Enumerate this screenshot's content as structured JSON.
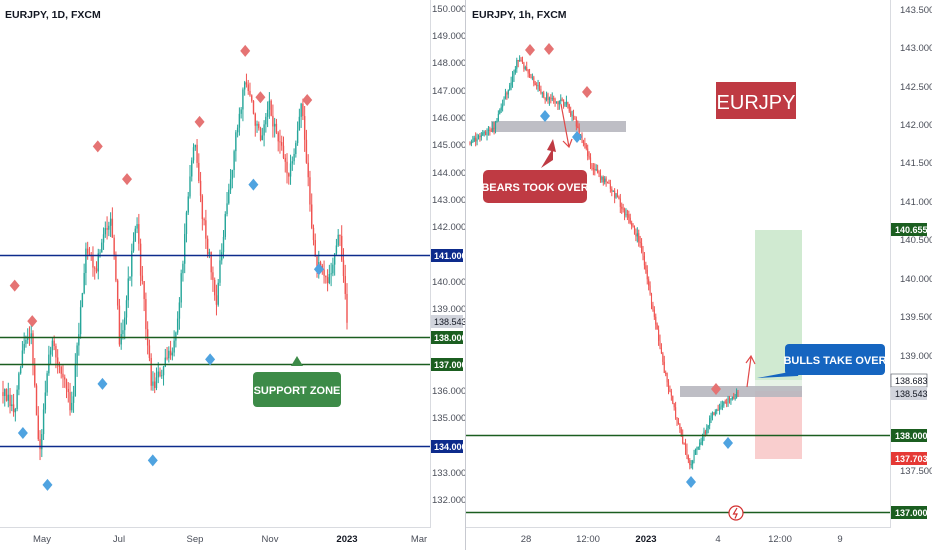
{
  "colors": {
    "up": "#26a69a",
    "down": "#ef5350",
    "navy": "#0d2b8c",
    "green_line": "#1b5e20",
    "supp_green": "#3d8b48",
    "bear_red": "#bf3a43",
    "bull_blue": "#1565c0",
    "diamond_red": "#e57373",
    "diamond_blue": "#4fa3e0",
    "grey_zone": "#b7b7bf",
    "tp_zone": "#c8e6c9",
    "sl_zone": "#f8c9c9"
  },
  "chart_data": [
    {
      "type": "candlestick",
      "title": "EURJPY, 1D, FXCM",
      "timeframe": "1D",
      "ylim": [
        131.5,
        150.3
      ],
      "y_ticks": [
        "132.000",
        "133.000",
        "134.000",
        "135.000",
        "136.000",
        "137.000",
        "138.000",
        "139.000",
        "140.000",
        "141.000",
        "142.000",
        "143.000",
        "144.000",
        "145.000",
        "146.000",
        "147.000",
        "148.000",
        "149.000",
        "150.000"
      ],
      "x_ticks": [
        "May",
        "Jul",
        "Sep",
        "Nov",
        "2023",
        "Mar"
      ],
      "levels": [
        {
          "price": 141.0,
          "label": "141.000",
          "style": "navy"
        },
        {
          "price": 138.0,
          "label": "138.000",
          "style": "green"
        },
        {
          "price": 137.0,
          "label": "137.000",
          "style": "green"
        },
        {
          "price": 134.0,
          "label": "134.000",
          "style": "navy"
        }
      ],
      "last_price_label": "138.543",
      "annotation": "SUPPORT ZONE",
      "close_path": [
        [
          "2022-03-28",
          136.0
        ],
        [
          "2022-04-07",
          135.2
        ],
        [
          "2022-04-14",
          137.6
        ],
        [
          "2022-04-21",
          138.3
        ],
        [
          "2022-04-28",
          133.6
        ],
        [
          "2022-05-08",
          137.9
        ],
        [
          "2022-05-18",
          136.6
        ],
        [
          "2022-05-26",
          135.3
        ],
        [
          "2022-06-07",
          141.4
        ],
        [
          "2022-06-15",
          140.5
        ],
        [
          "2022-06-28",
          142.6
        ],
        [
          "2022-07-06",
          137.7
        ],
        [
          "2022-07-20",
          142.2
        ],
        [
          "2022-08-02",
          136.2
        ],
        [
          "2022-08-12",
          136.8
        ],
        [
          "2022-08-23",
          138.1
        ],
        [
          "2022-09-07",
          145.3
        ],
        [
          "2022-09-14",
          142.7
        ],
        [
          "2022-09-26",
          139.3
        ],
        [
          "2022-10-06",
          143.0
        ],
        [
          "2022-10-14",
          145.6
        ],
        [
          "2022-10-21",
          147.5
        ],
        [
          "2022-11-04",
          145.0
        ],
        [
          "2022-11-10",
          146.5
        ],
        [
          "2022-11-21",
          144.8
        ],
        [
          "2022-11-28",
          143.9
        ],
        [
          "2022-12-08",
          146.6
        ],
        [
          "2022-12-20",
          140.7
        ],
        [
          "2022-12-30",
          140.0
        ],
        [
          "2023-01-10",
          141.8
        ],
        [
          "2023-01-16",
          138.54
        ]
      ],
      "swing_highs": [
        [
          "2022-04-07",
          139.9
        ],
        [
          "2022-04-22",
          138.6
        ],
        [
          "2022-06-17",
          145.0
        ],
        [
          "2022-07-12",
          143.8
        ],
        [
          "2022-09-12",
          145.9
        ],
        [
          "2022-10-21",
          148.5
        ],
        [
          "2022-11-03",
          146.8
        ],
        [
          "2022-12-13",
          146.7
        ]
      ],
      "swing_lows": [
        [
          "2022-04-14",
          134.5
        ],
        [
          "2022-05-05",
          132.6
        ],
        [
          "2022-06-21",
          136.3
        ],
        [
          "2022-08-03",
          133.5
        ],
        [
          "2022-09-21",
          137.2
        ],
        [
          "2022-10-28",
          143.6
        ],
        [
          "2022-12-23",
          140.5
        ]
      ]
    },
    {
      "type": "candlestick",
      "title": "EURJPY, 1h, FXCM",
      "timeframe": "1h",
      "ylim": [
        136.75,
        143.6
      ],
      "y_ticks": [
        "137.000",
        "137.500",
        "138.000",
        "138.500",
        "139.000",
        "139.500",
        "140.000",
        "140.500",
        "141.000",
        "141.500",
        "142.000",
        "142.500",
        "143.000",
        "143.500"
      ],
      "x_ticks": [
        "28",
        "12:00",
        "2023",
        "4",
        "12:00",
        "9"
      ],
      "levels": [
        {
          "price": 138.0,
          "label": "138.000",
          "style": "green"
        },
        {
          "price": 137.0,
          "label": "137.000",
          "style": "green"
        }
      ],
      "price_labels": {
        "take_profit": "140.655",
        "entry": "138.683",
        "last": "138.543",
        "stop_loss": "137.703"
      },
      "badge": "EURJPY",
      "annotations": [
        "BEARS TOOK OVER",
        "BULLS TAKE OVER"
      ],
      "close_path": [
        [
          "2022-12-26",
          141.8
        ],
        [
          "2022-12-27",
          142.0
        ],
        [
          "2022-12-28",
          142.9
        ],
        [
          "2022-12-29",
          142.4
        ],
        [
          "2022-12-30",
          142.3
        ],
        [
          "2022-12-31",
          141.5
        ],
        [
          "2023-01-01",
          141.1
        ],
        [
          "2023-01-02",
          140.5
        ],
        [
          "2023-01-03",
          138.8
        ],
        [
          "2023-01-04",
          137.6
        ],
        [
          "2023-01-05",
          138.3
        ],
        [
          "2023-01-06",
          138.55
        ]
      ]
    }
  ]
}
